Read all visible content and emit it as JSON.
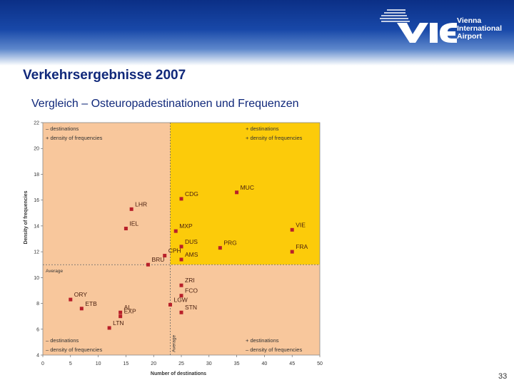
{
  "header": {
    "title": "Verkehrsergebnisse 2007",
    "subtitle": "Vergleich – Osteuropadestinationen und Frequenzen",
    "logo_lines": [
      "Vienna",
      "International",
      "Airport"
    ]
  },
  "page_number": "33",
  "colors": {
    "band": "#1848a8",
    "title": "#10287a",
    "quadrant_salmon": "#f8c79c",
    "quadrant_yellow": "#fccb0a",
    "marker": "#b8202a"
  },
  "chart_data": {
    "type": "scatter",
    "xlabel": "Number of destinations",
    "ylabel": "Density of frequencies",
    "xlim": [
      0,
      50
    ],
    "ylim": [
      4,
      22
    ],
    "xticks": [
      0,
      5,
      10,
      15,
      20,
      25,
      30,
      35,
      40,
      45,
      50
    ],
    "yticks": [
      4,
      6,
      8,
      10,
      12,
      14,
      16,
      18,
      20,
      22
    ],
    "average": {
      "x": 23,
      "y": 11,
      "label": "Average"
    },
    "quadrant_legends": {
      "top_left": [
        "– destinations",
        "+ density of frequencies"
      ],
      "top_right": [
        "+ destinations",
        "+ density of frequencies"
      ],
      "bottom_left": [
        "– destinations",
        "– density of frequencies"
      ],
      "bottom_right": [
        "+ destinations",
        "– density of frequencies"
      ]
    },
    "points": [
      {
        "label": "LHR",
        "x": 16,
        "y": 15.3
      },
      {
        "label": "IEL",
        "x": 15,
        "y": 13.8
      },
      {
        "label": "CDG",
        "x": 25,
        "y": 16.1
      },
      {
        "label": "MUC",
        "x": 35,
        "y": 16.6
      },
      {
        "label": "MXP",
        "x": 24,
        "y": 13.6
      },
      {
        "label": "DUS",
        "x": 25,
        "y": 12.4
      },
      {
        "label": "PRG",
        "x": 32,
        "y": 12.3
      },
      {
        "label": "VIE",
        "x": 45,
        "y": 13.7
      },
      {
        "label": "FRA",
        "x": 45,
        "y": 12
      },
      {
        "label": "CPH",
        "x": 22,
        "y": 11.7
      },
      {
        "label": "AMS",
        "x": 25,
        "y": 11.4
      },
      {
        "label": "BRU",
        "x": 19,
        "y": 11
      },
      {
        "label": "ZRI",
        "x": 25,
        "y": 9.4
      },
      {
        "label": "FCO",
        "x": 25,
        "y": 8.6
      },
      {
        "label": "LGW",
        "x": 23,
        "y": 7.9
      },
      {
        "label": "STN",
        "x": 25,
        "y": 7.3
      },
      {
        "label": "ORY",
        "x": 5,
        "y": 8.3
      },
      {
        "label": "ETB",
        "x": 7,
        "y": 7.6
      },
      {
        "label": "AL",
        "x": 14,
        "y": 7.3
      },
      {
        "label": "EXP",
        "x": 14,
        "y": 7
      },
      {
        "label": "LTN",
        "x": 12,
        "y": 6.1
      }
    ]
  }
}
